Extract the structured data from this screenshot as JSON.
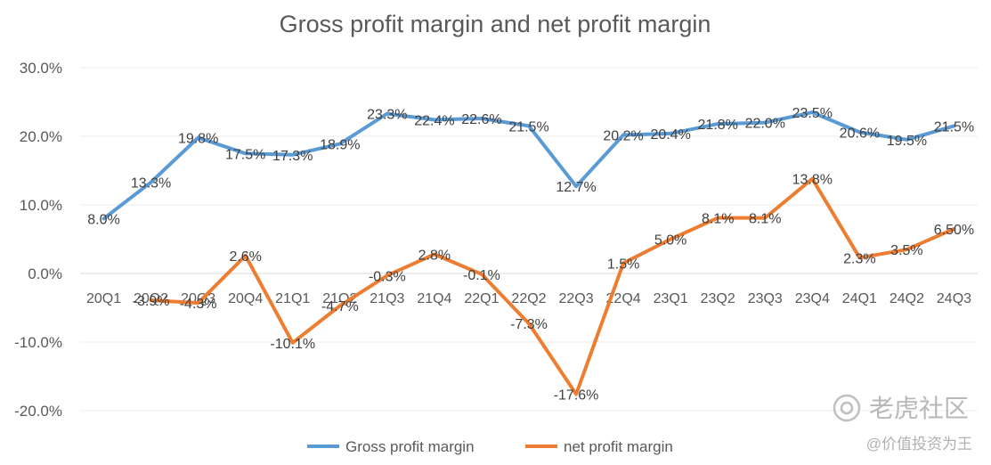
{
  "chart_data": {
    "type": "line",
    "title": "Gross profit margin and net profit margin",
    "categories": [
      "20Q1",
      "20Q2",
      "20Q3",
      "20Q4",
      "21Q1",
      "21Q2",
      "21Q3",
      "21Q4",
      "22Q1",
      "22Q2",
      "22Q3",
      "22Q4",
      "23Q1",
      "23Q2",
      "23Q3",
      "23Q4",
      "24Q1",
      "24Q2",
      "24Q3"
    ],
    "ylim": [
      -20,
      30
    ],
    "yticks": [
      30,
      20,
      10,
      0,
      -10,
      -20
    ],
    "ytick_labels": [
      "30.0%",
      "20.0%",
      "10.0%",
      "0.0%",
      "-10.0%",
      "-20.0%"
    ],
    "grid": true,
    "legend_position": "bottom",
    "series": [
      {
        "name": "Gross profit margin",
        "color": "#5b9bd5",
        "values": [
          8.0,
          13.3,
          19.8,
          17.5,
          17.3,
          18.9,
          23.3,
          22.4,
          22.6,
          21.5,
          12.7,
          20.2,
          20.4,
          21.8,
          22.0,
          23.5,
          20.6,
          19.5,
          21.5
        ],
        "labels": [
          "8.0%",
          "13.3%",
          "19.8%",
          "17.5%",
          "17.3%",
          "18.9%",
          "23.3%",
          "22.4%",
          "22.6%",
          "21.5%",
          "12.7%",
          "20.2%",
          "20.4%",
          "21.8%",
          "22.0%",
          "23.5%",
          "20.6%",
          "19.5%",
          "21.5%"
        ]
      },
      {
        "name": "net profit margin",
        "color": "#ed7d31",
        "values": [
          null,
          -3.9,
          -4.3,
          2.6,
          -10.1,
          -4.7,
          -0.3,
          2.8,
          -0.1,
          -7.3,
          -17.6,
          1.5,
          5.0,
          8.1,
          8.1,
          13.8,
          2.3,
          3.5,
          6.5
        ],
        "labels": [
          null,
          "-3.9%",
          "-4.3%",
          "2.6%",
          "-10.1%",
          "-4.7%",
          "-0.3%",
          "2.8%",
          "-0.1%",
          "-7.3%",
          "-17.6%",
          "1.5%",
          "5.0%",
          "8.1%",
          "8.1%",
          "13.8%",
          "2.3%",
          "3.5%",
          "6.50%"
        ]
      }
    ]
  },
  "watermark": {
    "brand": "老虎社区",
    "user": "@价值投资为王"
  }
}
